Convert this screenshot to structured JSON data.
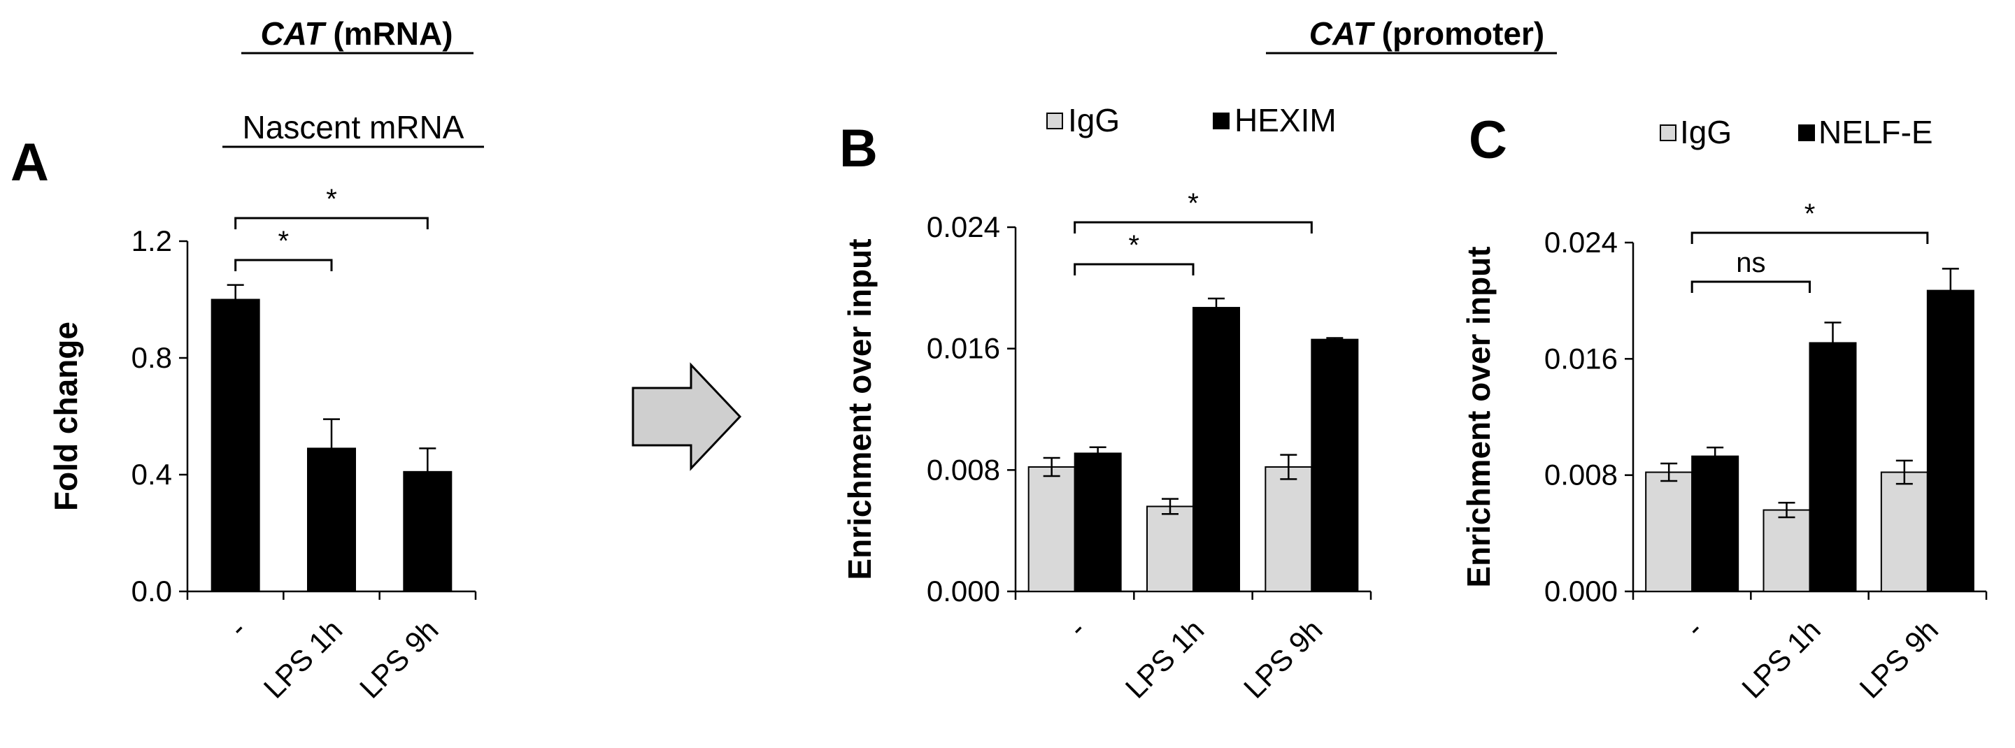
{
  "header_left": {
    "gene": "CAT",
    "suffix": " (mRNA)"
  },
  "header_right": {
    "gene": "CAT",
    "suffix": " (promoter)"
  },
  "colors": {
    "black": "#000000",
    "gray": "#d9d9d9",
    "arrow_fill": "#cfcfcf"
  },
  "arrow_icon": "right-arrow-icon",
  "chart_data": [
    {
      "panel": "A",
      "type": "bar",
      "subtitle": "Nascent mRNA",
      "ylabel": "Fold change",
      "xlabel": "",
      "categories": [
        "-",
        "LPS 1h",
        "LPS 9h"
      ],
      "ylim": [
        0,
        1.2
      ],
      "yticks": [
        "0.0",
        "0.4",
        "0.8",
        "1.2"
      ],
      "series": [
        {
          "values": [
            1.0,
            0.49,
            0.41
          ],
          "errors": [
            0.05,
            0.1,
            0.08
          ],
          "color": "#000000"
        }
      ],
      "legend": [],
      "significance": [
        {
          "from": 0,
          "to": 1,
          "label": "*"
        },
        {
          "from": 0,
          "to": 2,
          "label": "*"
        }
      ],
      "grid": false
    },
    {
      "panel": "B",
      "type": "bar",
      "subtitle": "",
      "ylabel": "Enrichment over input",
      "xlabel": "",
      "categories": [
        "-",
        "LPS 1h",
        "LPS 9h"
      ],
      "ylim": [
        0,
        0.024
      ],
      "yticks": [
        "0.000",
        "0.008",
        "0.016",
        "0.024"
      ],
      "series": [
        {
          "name": "IgG",
          "values": [
            0.0082,
            0.0056,
            0.0082
          ],
          "errors": [
            0.0006,
            0.0005,
            0.0008
          ],
          "color": "#d9d9d9"
        },
        {
          "name": "HEXIM",
          "values": [
            0.0091,
            0.0187,
            0.0166
          ],
          "errors": [
            0.0004,
            0.0006,
            0.0001
          ],
          "color": "#000000"
        }
      ],
      "legend": [
        "IgG",
        "HEXIM"
      ],
      "legend_position": "top",
      "significance": [
        {
          "from": 0,
          "to": 1,
          "label": "*"
        },
        {
          "from": 0,
          "to": 2,
          "label": "*"
        }
      ],
      "grid": false
    },
    {
      "panel": "C",
      "type": "bar",
      "subtitle": "",
      "ylabel": "Enrichment over input",
      "xlabel": "",
      "categories": [
        "-",
        "LPS 1h",
        "LPS 9h"
      ],
      "ylim": [
        0,
        0.024
      ],
      "yticks": [
        "0.000",
        "0.008",
        "0.016",
        "0.024"
      ],
      "series": [
        {
          "name": "IgG",
          "values": [
            0.0082,
            0.0056,
            0.0082
          ],
          "errors": [
            0.0006,
            0.0005,
            0.0008
          ],
          "color": "#d9d9d9"
        },
        {
          "name": "NELF-E",
          "values": [
            0.0093,
            0.0171,
            0.0207
          ],
          "errors": [
            0.0006,
            0.0014,
            0.0015
          ],
          "color": "#000000"
        }
      ],
      "legend": [
        "IgG",
        "NELF-E"
      ],
      "legend_position": "top",
      "significance": [
        {
          "from": 0,
          "to": 1,
          "label": "ns"
        },
        {
          "from": 0,
          "to": 2,
          "label": "*"
        }
      ],
      "grid": false
    }
  ]
}
